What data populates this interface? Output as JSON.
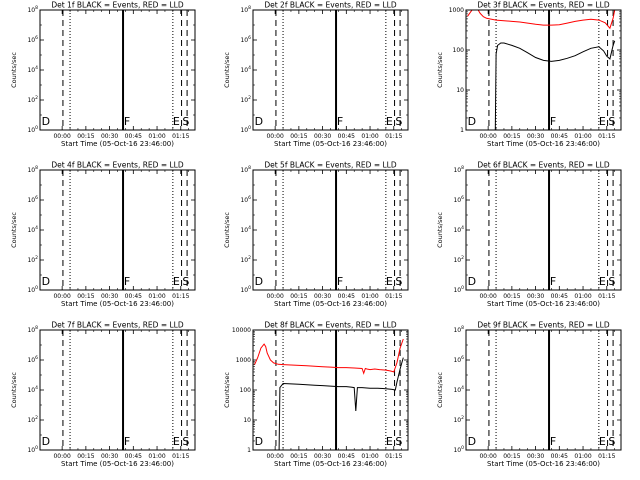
{
  "colors": {
    "events": "#000000",
    "lld": "#ff0000",
    "frame": "#000000",
    "background": "#ffffff"
  },
  "chart_data": [
    {
      "type": "line",
      "title": "Det 1f BLACK = Events, RED = LLD",
      "xlabel": "Start Time (05-Oct-16 23:46:00)",
      "ylabel": "Counts/sec",
      "xlim": [
        -14,
        84
      ],
      "ylim": [
        1,
        100000000
      ],
      "yscale": "log",
      "xticks": [
        "00:00",
        "00:15",
        "00:30",
        "00:45",
        "01:00",
        "01:15"
      ],
      "yticks": [
        "10^0",
        "10^2",
        "10^4",
        "10^6",
        "10^8"
      ],
      "vlines": [
        {
          "x": 0.5,
          "style": "dashed"
        },
        {
          "x": 5.0,
          "style": "dotted"
        },
        {
          "x": 38.5,
          "style": "solid"
        },
        {
          "x": 70.0,
          "style": "dotted"
        },
        {
          "x": 75.5,
          "style": "dashed"
        },
        {
          "x": 79.0,
          "style": "dashed"
        }
      ],
      "markers": [
        {
          "label": "D",
          "x": -13
        },
        {
          "label": "F",
          "x": 39
        },
        {
          "label": "E",
          "x": 70
        },
        {
          "label": "S",
          "x": 76
        }
      ],
      "series": []
    },
    {
      "type": "line",
      "title": "Det 2f BLACK = Events, RED = LLD",
      "xlabel": "Start Time (05-Oct-16 23:46:00)",
      "ylabel": "Counts/sec",
      "xlim": [
        -14,
        84
      ],
      "ylim": [
        1,
        100000000
      ],
      "yscale": "log",
      "xticks": [
        "00:00",
        "00:15",
        "00:30",
        "00:45",
        "01:00",
        "01:15"
      ],
      "yticks": [
        "10^0",
        "10^2",
        "10^4",
        "10^6",
        "10^8"
      ],
      "vlines": [
        {
          "x": 0.5,
          "style": "dashed"
        },
        {
          "x": 5.0,
          "style": "dotted"
        },
        {
          "x": 38.5,
          "style": "solid"
        },
        {
          "x": 70.0,
          "style": "dotted"
        },
        {
          "x": 75.5,
          "style": "dashed"
        },
        {
          "x": 79.0,
          "style": "dashed"
        }
      ],
      "markers": [
        {
          "label": "D",
          "x": -13
        },
        {
          "label": "F",
          "x": 39
        },
        {
          "label": "E",
          "x": 70
        },
        {
          "label": "S",
          "x": 76
        }
      ],
      "series": []
    },
    {
      "type": "line",
      "title": "Det 3f BLACK = Events, RED = LLD",
      "xlabel": "Start Time (05-Oct-16 23:46:00)",
      "ylabel": "Counts/sec",
      "xlim": [
        -14,
        84
      ],
      "ylim": [
        1,
        1000
      ],
      "yscale": "log",
      "xticks": [
        "00:00",
        "00:15",
        "00:30",
        "00:45",
        "01:00",
        "01:15"
      ],
      "yticks": [
        "1",
        "10",
        "100",
        "1000"
      ],
      "vlines": [
        {
          "x": 0.5,
          "style": "dashed"
        },
        {
          "x": 5.0,
          "style": "dotted"
        },
        {
          "x": 38.5,
          "style": "solid"
        },
        {
          "x": 70.0,
          "style": "dotted"
        },
        {
          "x": 75.5,
          "style": "dashed"
        },
        {
          "x": 79.0,
          "style": "dashed"
        }
      ],
      "markers": [
        {
          "label": "D",
          "x": -13
        },
        {
          "label": "F",
          "x": 39
        },
        {
          "label": "E",
          "x": 70
        },
        {
          "label": "S",
          "x": 76
        }
      ],
      "series": [
        {
          "color": "lld",
          "x": [
            -13,
            -11,
            -9,
            -7,
            -5,
            -3,
            -1,
            1,
            3,
            5,
            10,
            15,
            20,
            25,
            30,
            35,
            40,
            45,
            50,
            55,
            60,
            65,
            70,
            74,
            77,
            79,
            80
          ],
          "y": [
            700,
            900,
            1150,
            1100,
            820,
            680,
            620,
            600,
            580,
            560,
            540,
            520,
            500,
            470,
            440,
            420,
            420,
            430,
            470,
            520,
            560,
            590,
            560,
            480,
            350,
            620,
            1000
          ]
        },
        {
          "color": "events",
          "x": [
            4.5,
            5,
            6,
            8,
            10,
            15,
            20,
            25,
            30,
            35,
            40,
            45,
            50,
            55,
            60,
            65,
            70,
            73,
            75,
            77,
            79,
            80
          ],
          "y": [
            1,
            80,
            130,
            150,
            150,
            130,
            110,
            85,
            65,
            55,
            52,
            55,
            62,
            72,
            90,
            110,
            120,
            95,
            70,
            60,
            130,
            170
          ]
        }
      ]
    },
    {
      "type": "line",
      "title": "Det 4f BLACK = Events, RED = LLD",
      "xlabel": "Start Time (05-Oct-16 23:46:00)",
      "ylabel": "Counts/sec",
      "xlim": [
        -14,
        84
      ],
      "ylim": [
        1,
        100000000
      ],
      "yscale": "log",
      "xticks": [
        "00:00",
        "00:15",
        "00:30",
        "00:45",
        "01:00",
        "01:15"
      ],
      "yticks": [
        "10^0",
        "10^2",
        "10^4",
        "10^6",
        "10^8"
      ],
      "vlines": [
        {
          "x": 0.5,
          "style": "dashed"
        },
        {
          "x": 5.0,
          "style": "dotted"
        },
        {
          "x": 38.5,
          "style": "solid"
        },
        {
          "x": 70.0,
          "style": "dotted"
        },
        {
          "x": 75.5,
          "style": "dashed"
        },
        {
          "x": 79.0,
          "style": "dashed"
        }
      ],
      "markers": [
        {
          "label": "D",
          "x": -13
        },
        {
          "label": "F",
          "x": 39
        },
        {
          "label": "E",
          "x": 70
        },
        {
          "label": "S",
          "x": 76
        }
      ],
      "series": []
    },
    {
      "type": "line",
      "title": "Det 5f BLACK = Events, RED = LLD",
      "xlabel": "Start Time (05-Oct-16 23:46:00)",
      "ylabel": "Counts/sec",
      "xlim": [
        -14,
        84
      ],
      "ylim": [
        1,
        100000000
      ],
      "yscale": "log",
      "xticks": [
        "00:00",
        "00:15",
        "00:30",
        "00:45",
        "01:00",
        "01:15"
      ],
      "yticks": [
        "10^0",
        "10^2",
        "10^4",
        "10^6",
        "10^8"
      ],
      "vlines": [
        {
          "x": 0.5,
          "style": "dashed"
        },
        {
          "x": 5.0,
          "style": "dotted"
        },
        {
          "x": 38.5,
          "style": "solid"
        },
        {
          "x": 70.0,
          "style": "dotted"
        },
        {
          "x": 75.5,
          "style": "dashed"
        },
        {
          "x": 79.0,
          "style": "dashed"
        }
      ],
      "markers": [
        {
          "label": "D",
          "x": -13
        },
        {
          "label": "F",
          "x": 39
        },
        {
          "label": "E",
          "x": 70
        },
        {
          "label": "S",
          "x": 76
        }
      ],
      "series": []
    },
    {
      "type": "line",
      "title": "Det 6f BLACK = Events, RED = LLD",
      "xlabel": "Start Time (05-Oct-16 23:46:00)",
      "ylabel": "Counts/sec",
      "xlim": [
        -14,
        84
      ],
      "ylim": [
        1,
        100000000
      ],
      "yscale": "log",
      "xticks": [
        "00:00",
        "00:15",
        "00:30",
        "00:45",
        "01:00",
        "01:15"
      ],
      "yticks": [
        "10^0",
        "10^2",
        "10^4",
        "10^6",
        "10^8"
      ],
      "vlines": [
        {
          "x": 0.5,
          "style": "dashed"
        },
        {
          "x": 5.0,
          "style": "dotted"
        },
        {
          "x": 38.5,
          "style": "solid"
        },
        {
          "x": 70.0,
          "style": "dotted"
        },
        {
          "x": 75.5,
          "style": "dashed"
        },
        {
          "x": 79.0,
          "style": "dashed"
        }
      ],
      "markers": [
        {
          "label": "D",
          "x": -13
        },
        {
          "label": "F",
          "x": 39
        },
        {
          "label": "E",
          "x": 70
        },
        {
          "label": "S",
          "x": 76
        }
      ],
      "series": []
    },
    {
      "type": "line",
      "title": "Det 7f BLACK = Events, RED = LLD",
      "xlabel": "Start Time (05-Oct-16 23:46:00)",
      "ylabel": "Counts/sec",
      "xlim": [
        -14,
        84
      ],
      "ylim": [
        1,
        100000000
      ],
      "yscale": "log",
      "xticks": [
        "00:00",
        "00:15",
        "00:30",
        "00:45",
        "01:00",
        "01:15"
      ],
      "yticks": [
        "10^0",
        "10^2",
        "10^4",
        "10^6",
        "10^8"
      ],
      "vlines": [
        {
          "x": 0.5,
          "style": "dashed"
        },
        {
          "x": 5.0,
          "style": "dotted"
        },
        {
          "x": 38.5,
          "style": "solid"
        },
        {
          "x": 70.0,
          "style": "dotted"
        },
        {
          "x": 75.5,
          "style": "dashed"
        },
        {
          "x": 79.0,
          "style": "dashed"
        }
      ],
      "markers": [
        {
          "label": "D",
          "x": -13
        },
        {
          "label": "F",
          "x": 39
        },
        {
          "label": "E",
          "x": 70
        },
        {
          "label": "S",
          "x": 76
        }
      ],
      "series": []
    },
    {
      "type": "line",
      "title": "Det 8f BLACK = Events, RED = LLD",
      "xlabel": "Start Time (05-Oct-16 23:46:00)",
      "ylabel": "Counts/sec",
      "xlim": [
        -14,
        84
      ],
      "ylim": [
        1,
        10000
      ],
      "yscale": "log",
      "xticks": [
        "00:00",
        "00:15",
        "00:30",
        "00:45",
        "01:00",
        "01:15"
      ],
      "yticks": [
        "1",
        "10",
        "100",
        "1000",
        "10000"
      ],
      "vlines": [
        {
          "x": 0.5,
          "style": "dashed"
        },
        {
          "x": 5.0,
          "style": "dotted"
        },
        {
          "x": 38.5,
          "style": "solid"
        },
        {
          "x": 70.0,
          "style": "dotted"
        },
        {
          "x": 75.5,
          "style": "dashed"
        },
        {
          "x": 79.0,
          "style": "dashed"
        }
      ],
      "markers": [
        {
          "label": "D",
          "x": -13
        },
        {
          "label": "E",
          "x": 70
        },
        {
          "label": "S",
          "x": 76
        }
      ],
      "series": [
        {
          "color": "lld",
          "x": [
            -13,
            -11,
            -9,
            -7,
            -6,
            -5,
            -3,
            -1,
            2,
            5,
            10,
            15,
            20,
            25,
            30,
            35,
            40,
            45,
            50,
            55,
            56,
            57,
            58,
            60,
            63,
            66,
            70,
            73,
            75,
            77,
            79,
            81
          ],
          "y": [
            700,
            1200,
            2500,
            3400,
            2800,
            1700,
            1000,
            800,
            720,
            700,
            680,
            660,
            640,
            620,
            600,
            580,
            560,
            560,
            540,
            520,
            360,
            520,
            500,
            480,
            500,
            480,
            460,
            430,
            400,
            800,
            2500,
            5000
          ]
        },
        {
          "color": "events",
          "x": [
            2.5,
            3,
            5,
            10,
            15,
            20,
            25,
            30,
            35,
            40,
            45,
            48,
            50,
            51,
            52,
            55,
            60,
            65,
            70,
            74,
            76,
            77,
            79,
            81
          ],
          "y": [
            1,
            120,
            165,
            160,
            155,
            150,
            145,
            140,
            135,
            130,
            130,
            125,
            120,
            20,
            120,
            120,
            115,
            115,
            110,
            105,
            100,
            180,
            500,
            1200
          ]
        }
      ]
    },
    {
      "type": "line",
      "title": "Det 9f BLACK = Events, RED = LLD",
      "xlabel": "Start Time (05-Oct-16 23:46:00)",
      "ylabel": "Counts/sec",
      "xlim": [
        -14,
        84
      ],
      "ylim": [
        1,
        100000000
      ],
      "yscale": "log",
      "xticks": [
        "00:00",
        "00:15",
        "00:30",
        "00:45",
        "01:00",
        "01:15"
      ],
      "yticks": [
        "10^0",
        "10^2",
        "10^4",
        "10^6",
        "10^8"
      ],
      "vlines": [
        {
          "x": 0.5,
          "style": "dashed"
        },
        {
          "x": 5.0,
          "style": "dotted"
        },
        {
          "x": 38.5,
          "style": "solid"
        },
        {
          "x": 70.0,
          "style": "dotted"
        },
        {
          "x": 75.5,
          "style": "dashed"
        },
        {
          "x": 79.0,
          "style": "dashed"
        }
      ],
      "markers": [
        {
          "label": "D",
          "x": -13
        },
        {
          "label": "F",
          "x": 39
        },
        {
          "label": "E",
          "x": 70
        },
        {
          "label": "S",
          "x": 76
        }
      ],
      "series": []
    }
  ]
}
